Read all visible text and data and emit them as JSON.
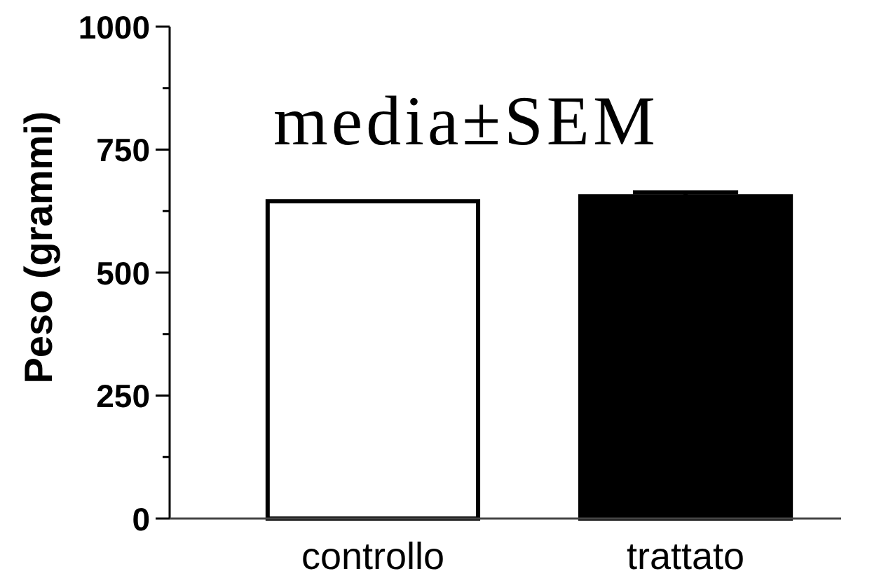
{
  "chart_data": {
    "type": "bar",
    "categories": [
      "controllo",
      "trattato"
    ],
    "values": [
      645,
      655
    ],
    "errors": [
      null,
      8
    ],
    "colors": [
      "#ffffff",
      "#000000"
    ],
    "ylabel": "Peso (grammi)",
    "ylim": [
      0,
      1000
    ],
    "yticks": [
      0,
      {
        "value": 125,
        "label": null
      },
      250,
      {
        "value": 375,
        "label": null
      },
      500,
      {
        "value": 625,
        "label": null
      },
      750,
      {
        "value": 875,
        "label": null
      },
      1000
    ],
    "annotations": [
      "media±SEM"
    ],
    "grid": false
  }
}
